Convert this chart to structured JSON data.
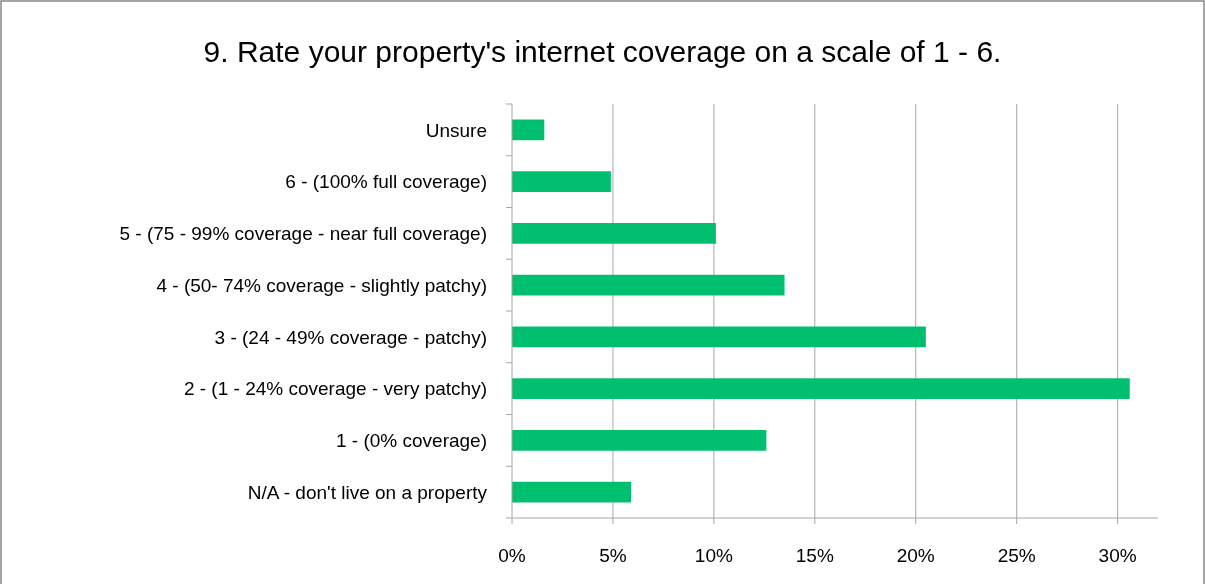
{
  "chart_data": {
    "type": "bar",
    "orientation": "horizontal",
    "title": "9. Rate your property's internet coverage on a scale of 1 - 6.",
    "categories": [
      "Unsure",
      "6 - (100% full coverage)",
      "5 - (75 - 99% coverage - near full coverage)",
      "4 - (50- 74% coverage - slightly patchy)",
      "3 - (24 - 49% coverage - patchy)",
      "2 - (1 - 24% coverage - very patchy)",
      "1 - (0% coverage)",
      "N/A - don't live on a property"
    ],
    "values": [
      1.6,
      4.9,
      10.1,
      13.5,
      20.5,
      30.6,
      12.6,
      5.9
    ],
    "color": "#00bf6f",
    "xlim": [
      0,
      32
    ],
    "xticks": [
      {
        "value": 0,
        "label": "0%"
      },
      {
        "value": 5,
        "label": "5%"
      },
      {
        "value": 10,
        "label": "10%"
      },
      {
        "value": 15,
        "label": "15%"
      },
      {
        "value": 20,
        "label": "20%"
      },
      {
        "value": 25,
        "label": "25%"
      },
      {
        "value": 30,
        "label": "30%"
      }
    ],
    "grid": "x"
  }
}
